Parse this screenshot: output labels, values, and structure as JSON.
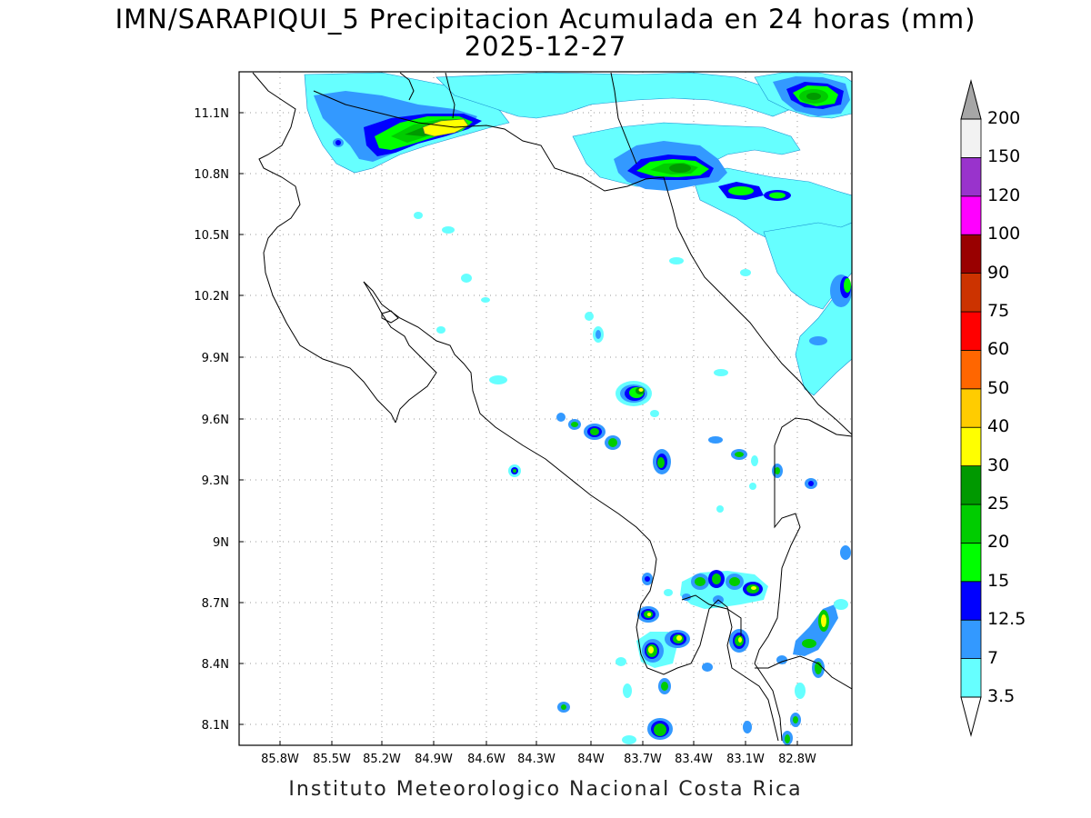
{
  "title": "IMN/SARAPIQUI_5 Precipitacion Acumulada en 24 horas (mm)",
  "date": "2025-12-27",
  "credit": "Instituto Meteorologico Nacional Costa Rica",
  "axes": {
    "x_ticks": [
      "85.8W",
      "85.5W",
      "85.2W",
      "84.9W",
      "84.6W",
      "84.3W",
      "84W",
      "83.7W",
      "83.4W",
      "83.1W",
      "82.8W"
    ],
    "y_ticks": [
      "11.1N",
      "10.8N",
      "10.5N",
      "10.2N",
      "9.9N",
      "9.6N",
      "9.3N",
      "9N",
      "8.7N",
      "8.4N",
      "8.1N"
    ]
  },
  "colorbar": {
    "labels": [
      "3.5",
      "7",
      "12.5",
      "15",
      "20",
      "25",
      "30",
      "40",
      "50",
      "60",
      "75",
      "90",
      "100",
      "120",
      "150",
      "200"
    ],
    "colors": [
      "#66ffff",
      "#3399ff",
      "#0000ff",
      "#00ff00",
      "#00cc00",
      "#009900",
      "#ffff00",
      "#ffcc00",
      "#ff6600",
      "#ff0000",
      "#cc3300",
      "#990000",
      "#ff00ff",
      "#9933cc",
      "#f2f2f2",
      "#a6a6a6"
    ]
  },
  "map": {
    "precip_cells": [
      {
        "lon": -84.9,
        "lat": 11.03,
        "level": "30-40"
      },
      {
        "lon": -83.6,
        "lat": 10.84,
        "level": "25-30"
      },
      {
        "lon": -82.75,
        "lat": 11.18,
        "level": "25-30"
      },
      {
        "lon": -83.75,
        "lat": 9.74,
        "level": "25-30"
      },
      {
        "lon": -83.6,
        "lat": 8.07,
        "level": "20-25"
      },
      {
        "lon": -83.75,
        "lat": 8.47,
        "level": "30-40"
      },
      {
        "lon": -82.7,
        "lat": 8.6,
        "level": "30-40"
      }
    ]
  }
}
